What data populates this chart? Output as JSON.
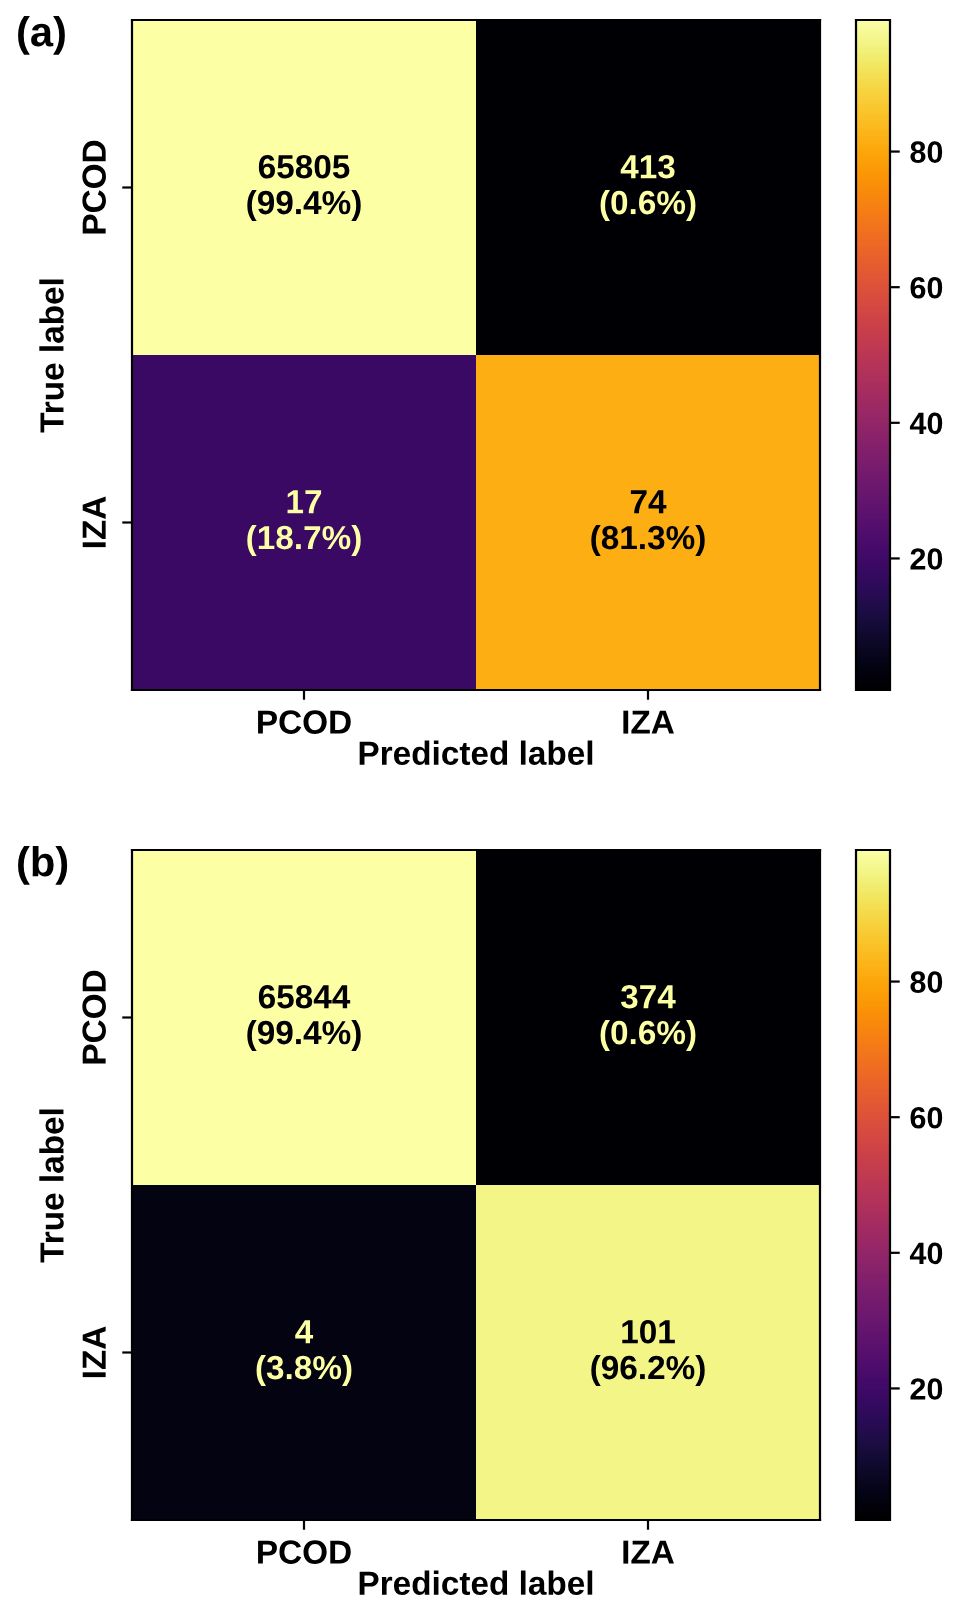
{
  "chart_data": [
    {
      "type": "heatmap",
      "title": "(a)",
      "xlabel": "Predicted label",
      "ylabel": "True label",
      "categories": [
        "PCOD",
        "IZA"
      ],
      "y_categories": [
        "PCOD",
        "IZA"
      ],
      "cells": [
        [
          99.4,
          0.6
        ],
        [
          18.7,
          81.3
        ]
      ],
      "cell_labels": [
        [
          "65805\n(99.4%)",
          "413\n(0.6%)"
        ],
        [
          "17\n(18.7%)",
          "74\n(81.3%)"
        ]
      ],
      "clim": [
        0.6,
        99.4
      ],
      "cticks": [
        20,
        40,
        60,
        80
      ]
    },
    {
      "type": "heatmap",
      "title": "(b)",
      "xlabel": "Predicted label",
      "ylabel": "True label",
      "categories": [
        "PCOD",
        "IZA"
      ],
      "y_categories": [
        "PCOD",
        "IZA"
      ],
      "cells": [
        [
          99.4,
          0.6
        ],
        [
          3.8,
          96.2
        ]
      ],
      "cell_labels": [
        [
          "65844\n(99.4%)",
          "374\n(0.6%)"
        ],
        [
          "4\n(3.8%)",
          "101\n(96.2%)"
        ]
      ],
      "clim": [
        0.6,
        99.4
      ],
      "cticks": [
        20,
        40,
        60,
        80
      ]
    }
  ]
}
